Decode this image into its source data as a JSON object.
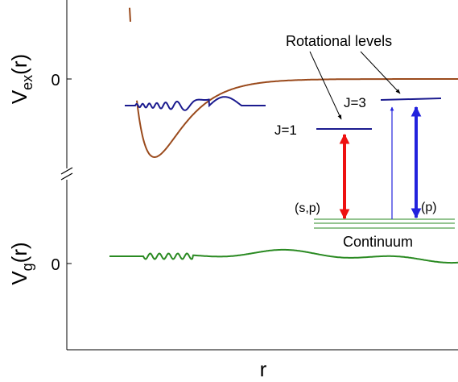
{
  "axis": {
    "x_label": "r",
    "y_label_upper_main": "V",
    "y_label_upper_sub": "ex",
    "y_label_upper_tail": "(r)",
    "y_label_lower_main": "V",
    "y_label_lower_sub": "g",
    "y_label_lower_tail": "(r)",
    "zero_upper": "0",
    "zero_lower": "0"
  },
  "annotations": {
    "rotational_levels": "Rotational levels",
    "j1": "J=1",
    "j3": "J=3",
    "sp": "(s,p)",
    "p": "(p)",
    "continuum": "Continuum"
  },
  "colors": {
    "excited_potential": "#9a4a1c",
    "ground_potential": "#9b30e8",
    "bound_wavefunction": "#1b1b8f",
    "continuum_wavefunction": "#2a8a22",
    "red_arrow": "#ee1111",
    "blue_arrow": "#2222dd",
    "rot_levels": "#1b1b8f"
  }
}
